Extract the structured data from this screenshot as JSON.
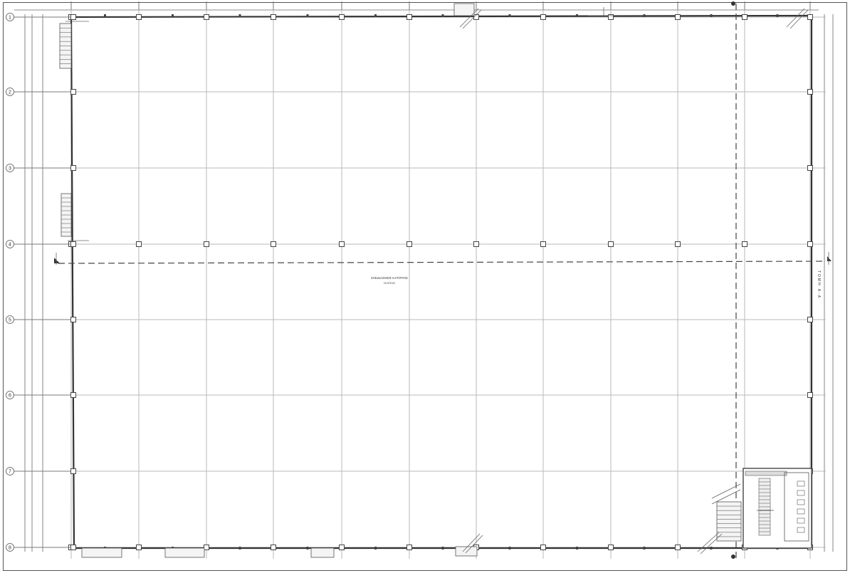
{
  "drawing": {
    "title": "ΣΧΕΔΙΑΣΜΟΣ ΚΑΤΟΨΗΣ",
    "subtitle": "ΙΣΟΓΕΙΟ",
    "rotated_label": "ΤΟΜΗ Α-Α",
    "row_axis_labels": [
      "1",
      "2",
      "3",
      "4",
      "5",
      "6",
      "7",
      "8"
    ],
    "section_marker": "Α",
    "room_label": "ΚΛΙΜΑΚΟΣΤΑΣΙΟ"
  }
}
